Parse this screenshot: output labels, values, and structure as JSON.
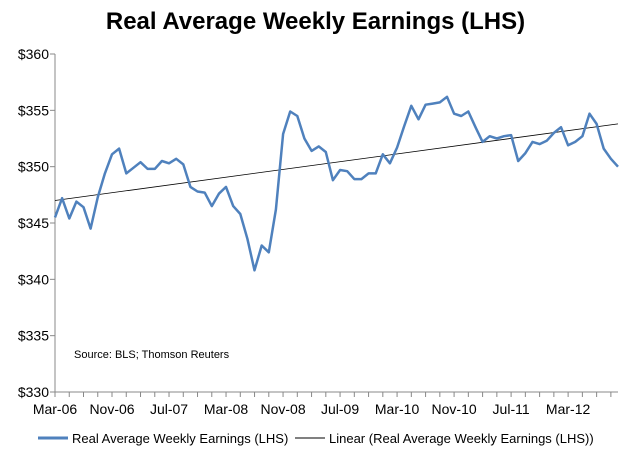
{
  "chart_data": {
    "type": "line",
    "title": "Real Average Weekly Earnings (LHS)",
    "annotation": "Source: BLS; Thomson Reuters",
    "xlabel": "",
    "ylabel": "",
    "ylim": [
      330,
      360
    ],
    "y_ticks": [
      330,
      335,
      340,
      345,
      350,
      355,
      360
    ],
    "y_tick_labels": [
      "$330",
      "$335",
      "$340",
      "$345",
      "$350",
      "$355",
      "$360"
    ],
    "x_tick_labels": [
      "Mar-06",
      "Nov-06",
      "Jul-07",
      "Mar-08",
      "Nov-08",
      "Jul-09",
      "Mar-10",
      "Nov-10",
      "Jul-11",
      "Mar-12"
    ],
    "x_tick_indices": [
      0,
      8,
      16,
      24,
      32,
      40,
      48,
      56,
      64,
      72
    ],
    "series": [
      {
        "name": "Real Average Weekly Earnings (LHS)",
        "color": "#4F81BD",
        "values": [
          345.5,
          347.2,
          345.4,
          346.9,
          346.4,
          344.5,
          347.3,
          349.4,
          351.1,
          351.6,
          349.4,
          349.9,
          350.4,
          349.8,
          349.8,
          350.5,
          350.3,
          350.7,
          350.2,
          348.2,
          347.8,
          347.7,
          346.5,
          347.6,
          348.2,
          346.5,
          345.8,
          343.6,
          340.8,
          343.0,
          342.4,
          346.2,
          352.9,
          354.9,
          354.5,
          352.5,
          351.4,
          351.8,
          351.3,
          348.8,
          349.7,
          349.6,
          348.9,
          348.9,
          349.4,
          349.4,
          351.1,
          350.3,
          351.7,
          353.6,
          355.4,
          354.2,
          355.5,
          355.6,
          355.7,
          356.2,
          354.7,
          354.5,
          354.9,
          353.5,
          352.2,
          352.7,
          352.5,
          352.7,
          352.8,
          350.5,
          351.2,
          352.2,
          352.0,
          352.3,
          353.0,
          353.5,
          351.9,
          352.2,
          352.7,
          354.7,
          353.8,
          351.6,
          350.7,
          350.0
        ]
      },
      {
        "name": "Linear (Real Average Weekly Earnings (LHS))",
        "color": "#000000",
        "trend": [
          347.0,
          353.8
        ]
      }
    ],
    "legend": [
      "Real Average Weekly Earnings (LHS)",
      "Linear (Real Average Weekly Earnings (LHS))"
    ],
    "legend_position": "bottom",
    "grid": false
  }
}
